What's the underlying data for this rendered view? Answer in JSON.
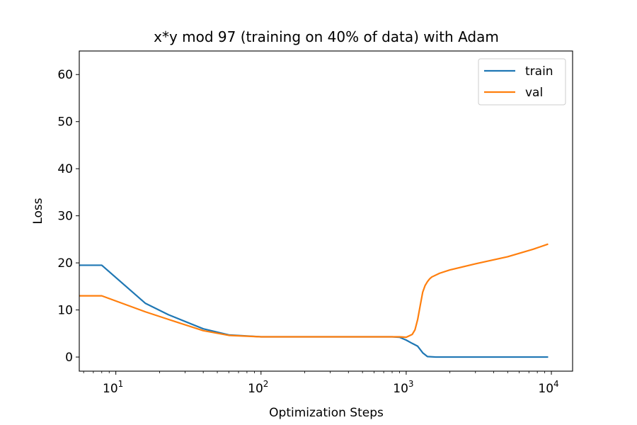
{
  "chart_data": {
    "type": "line",
    "title": "x*y mod 97 (training on 40% of data) with Adam",
    "xlabel": "Optimization Steps",
    "ylabel": "Loss",
    "xscale": "log",
    "xlim": [
      5.6,
      14000
    ],
    "ylim": [
      -3,
      65
    ],
    "yticks": [
      0,
      10,
      20,
      30,
      40,
      50,
      60
    ],
    "xticks_major": [
      10,
      100,
      1000,
      10000
    ],
    "xtick_labels": [
      {
        "base": "10",
        "exp": "1"
      },
      {
        "base": "10",
        "exp": "2"
      },
      {
        "base": "10",
        "exp": "3"
      },
      {
        "base": "10",
        "exp": "4"
      }
    ],
    "grid": false,
    "legend_position": "top-right",
    "series": [
      {
        "name": "train",
        "color": "#1f77b4",
        "x": [
          5.6,
          8,
          16,
          23,
          40,
          60,
          100,
          200,
          500,
          800,
          900,
          1000,
          1100,
          1200,
          1300,
          1400,
          1600,
          2000,
          5000,
          9500
        ],
        "y": [
          19.5,
          19.5,
          11.4,
          9.0,
          6.0,
          4.7,
          4.3,
          4.3,
          4.3,
          4.3,
          4.2,
          3.6,
          2.9,
          2.3,
          0.9,
          0.1,
          0.0,
          0.0,
          0.0,
          0.0
        ]
      },
      {
        "name": "val",
        "color": "#ff7f0e",
        "x": [
          5.6,
          8,
          16,
          23,
          40,
          60,
          100,
          200,
          500,
          800,
          900,
          1000,
          1100,
          1150,
          1200,
          1250,
          1300,
          1350,
          1400,
          1450,
          1500,
          1700,
          2000,
          3000,
          5000,
          7500,
          9500
        ],
        "y": [
          13.0,
          13.0,
          9.6,
          8.0,
          5.6,
          4.6,
          4.3,
          4.3,
          4.3,
          4.3,
          4.3,
          4.2,
          4.8,
          5.8,
          8.0,
          11.0,
          13.8,
          15.2,
          16.0,
          16.6,
          17.0,
          17.8,
          18.5,
          19.8,
          21.3,
          22.9,
          24.0
        ]
      }
    ]
  }
}
